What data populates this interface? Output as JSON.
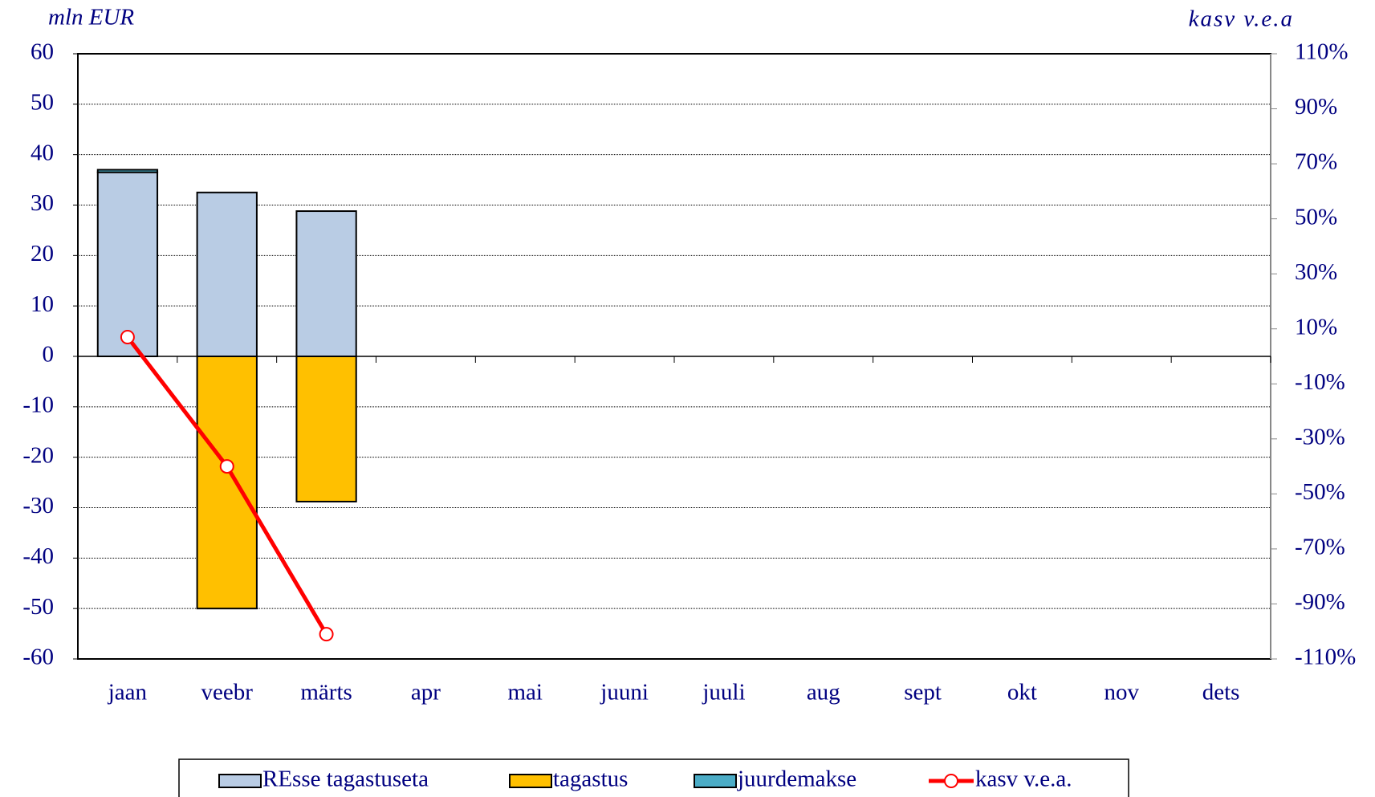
{
  "chart_data": {
    "type": "bar",
    "y_label": "mln EUR",
    "y2_label": "kasv v.e.a",
    "categories": [
      "jaan",
      "veebr",
      "märts",
      "apr",
      "mai",
      "juuni",
      "juuli",
      "aug",
      "sept",
      "okt",
      "nov",
      "dets"
    ],
    "stacked": true,
    "series": [
      {
        "name": "REsse tagastuseta",
        "color": "#b9cce4",
        "values": [
          36.5,
          32.5,
          28.8,
          null,
          null,
          null,
          null,
          null,
          null,
          null,
          null,
          null
        ]
      },
      {
        "name": "tagastus",
        "color": "#ffc000",
        "values": [
          0,
          -50,
          -28.8,
          null,
          null,
          null,
          null,
          null,
          null,
          null,
          null,
          null
        ]
      },
      {
        "name": "juurdemakse",
        "color": "#4bacc6",
        "values": [
          0.5,
          0,
          0,
          null,
          null,
          null,
          null,
          null,
          null,
          null,
          null,
          null
        ]
      },
      {
        "name": "kasv v.e.a.",
        "color": "#ff0000",
        "type": "line",
        "axis": "y2",
        "values": [
          7,
          -40,
          -101,
          null,
          null,
          null,
          null,
          null,
          null,
          null,
          null,
          null
        ]
      }
    ],
    "ylim": [
      -60,
      60
    ],
    "yticks": [
      -60,
      -50,
      -40,
      -30,
      -20,
      -10,
      0,
      10,
      20,
      30,
      40,
      50,
      60
    ],
    "y2lim": [
      -110,
      110
    ],
    "y2ticks": [
      {
        "value": -110,
        "label": "-110%"
      },
      {
        "value": -90,
        "label": "-90%"
      },
      {
        "value": -70,
        "label": "-70%"
      },
      {
        "value": -50,
        "label": "-50%"
      },
      {
        "value": -30,
        "label": "-30%"
      },
      {
        "value": -10,
        "label": "-10%"
      },
      {
        "value": 10,
        "label": "10%"
      },
      {
        "value": 30,
        "label": "30%"
      },
      {
        "value": 50,
        "label": "50%"
      },
      {
        "value": 70,
        "label": "70%"
      },
      {
        "value": 90,
        "label": "90%"
      },
      {
        "value": 110,
        "label": "110%"
      }
    ],
    "grid": true,
    "legend": "bottom"
  }
}
